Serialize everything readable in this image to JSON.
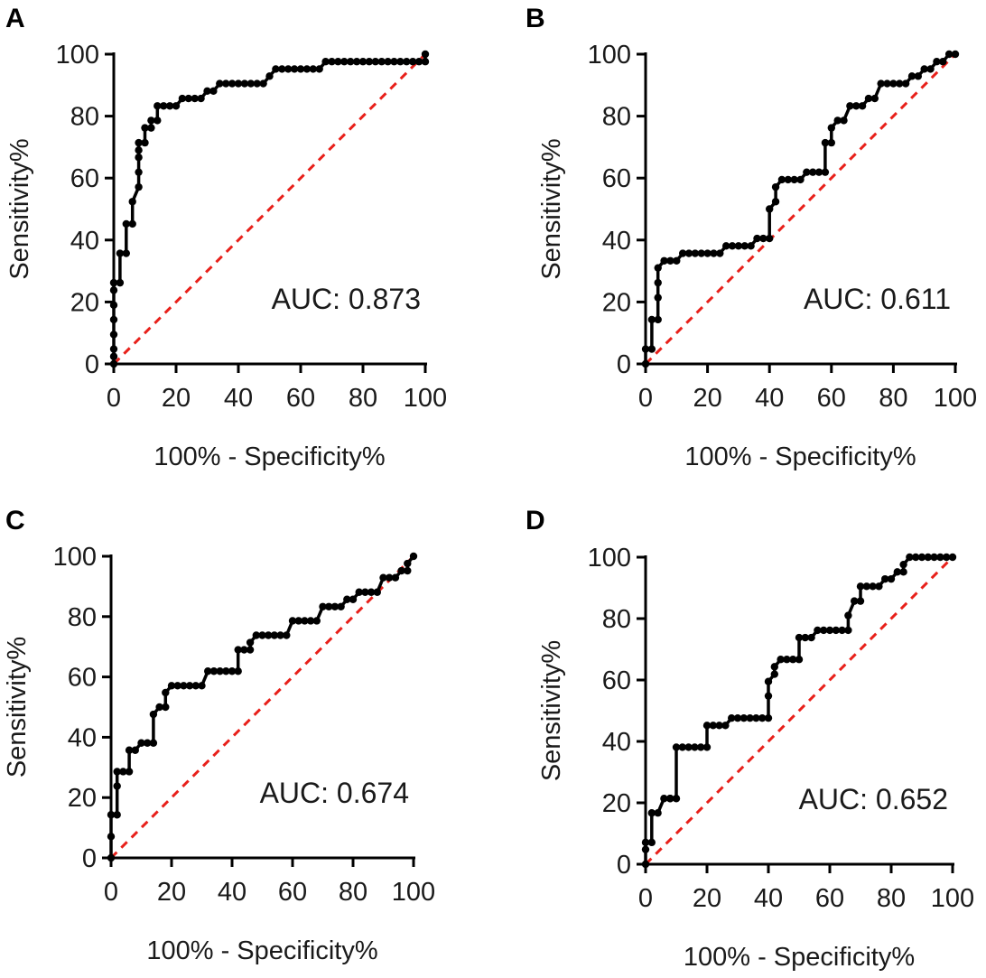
{
  "figure": {
    "title": "",
    "description": ""
  },
  "colors": {
    "axis": "#000000",
    "roc_line": "#000000",
    "reference_line": "#e8201a"
  },
  "chart_data": [
    {
      "panel": "A",
      "type": "line",
      "xlabel": "100% - Specificity%",
      "ylabel": "Sensitivity%",
      "xlim": [
        0,
        100
      ],
      "ylim": [
        0,
        100
      ],
      "xticks": [
        "0",
        "20",
        "40",
        "60",
        "80",
        "100"
      ],
      "yticks": [
        "0",
        "20",
        "40",
        "60",
        "80",
        "100"
      ],
      "annotation": "AUC: 0.873",
      "series": [
        {
          "name": "ROC curve",
          "x": [
            0,
            0,
            0,
            0,
            0,
            0,
            0,
            0,
            2,
            2,
            4,
            4,
            6,
            6,
            8,
            8,
            8,
            8,
            8,
            10,
            10,
            12,
            12,
            14,
            14,
            16,
            18,
            20,
            22,
            24,
            26,
            28,
            30,
            32,
            34,
            36,
            38,
            40,
            42,
            44,
            46,
            48,
            50,
            52,
            54,
            56,
            58,
            60,
            62,
            64,
            66,
            68,
            70,
            72,
            74,
            76,
            78,
            80,
            82,
            84,
            86,
            88,
            90,
            92,
            94,
            96,
            98,
            100,
            100
          ],
          "y": [
            0,
            2.4,
            4.8,
            9.5,
            14.3,
            19,
            23.8,
            26.2,
            26.2,
            35.7,
            35.7,
            45.2,
            45.2,
            52.4,
            57.1,
            61.9,
            66.7,
            69,
            71.4,
            71.4,
            76.2,
            76.2,
            78.6,
            78.6,
            83.3,
            83.3,
            83.3,
            83.3,
            85.7,
            85.7,
            85.7,
            85.7,
            88.1,
            88.1,
            90.5,
            90.5,
            90.5,
            90.5,
            90.5,
            90.5,
            90.5,
            90.5,
            92.9,
            95.2,
            95.2,
            95.2,
            95.2,
            95.2,
            95.2,
            95.2,
            95.2,
            97.6,
            97.6,
            97.6,
            97.6,
            97.6,
            97.6,
            97.6,
            97.6,
            97.6,
            97.6,
            97.6,
            97.6,
            97.6,
            97.6,
            97.6,
            97.6,
            97.6,
            100
          ]
        },
        {
          "name": "Reference line",
          "style": "dashed",
          "x": [
            0,
            100
          ],
          "y": [
            0,
            100
          ]
        }
      ]
    },
    {
      "panel": "B",
      "type": "line",
      "xlabel": "100% - Specificity%",
      "ylabel": "Sensitivity%",
      "xlim": [
        0,
        100
      ],
      "ylim": [
        0,
        100
      ],
      "xticks": [
        "0",
        "20",
        "40",
        "60",
        "80",
        "100"
      ],
      "yticks": [
        "0",
        "20",
        "40",
        "60",
        "80",
        "100"
      ],
      "annotation": "AUC: 0.611",
      "series": [
        {
          "name": "ROC curve",
          "x": [
            0,
            0,
            2,
            2,
            4,
            4,
            4,
            4,
            6,
            8,
            10,
            12,
            14,
            16,
            18,
            20,
            22,
            24,
            26,
            28,
            30,
            32,
            34,
            36,
            38,
            40,
            40,
            42,
            42,
            44,
            46,
            48,
            50,
            52,
            54,
            56,
            58,
            58,
            60,
            60,
            62,
            64,
            66,
            68,
            70,
            72,
            74,
            76,
            78,
            80,
            82,
            84,
            86,
            88,
            90,
            92,
            94,
            96,
            98,
            100
          ],
          "y": [
            0,
            4.8,
            4.8,
            14.3,
            14.3,
            21.4,
            26.2,
            31,
            33.3,
            33.3,
            33.3,
            35.7,
            35.7,
            35.7,
            35.7,
            35.7,
            35.7,
            35.7,
            38.1,
            38.1,
            38.1,
            38.1,
            38.1,
            40.5,
            40.5,
            40.5,
            50,
            52.4,
            57.1,
            59.5,
            59.5,
            59.5,
            59.5,
            61.9,
            61.9,
            61.9,
            61.9,
            71.4,
            71.4,
            76.2,
            78.6,
            78.6,
            83.3,
            83.3,
            83.3,
            85.7,
            85.7,
            90.5,
            90.5,
            90.5,
            90.5,
            90.5,
            92.9,
            92.9,
            95.2,
            95.2,
            97.6,
            97.6,
            100,
            100
          ]
        },
        {
          "name": "Reference line",
          "style": "dashed",
          "x": [
            0,
            100
          ],
          "y": [
            0,
            100
          ]
        }
      ]
    },
    {
      "panel": "C",
      "type": "line",
      "xlabel": "100% - Specificity%",
      "ylabel": "Sensitivity%",
      "xlim": [
        0,
        100
      ],
      "ylim": [
        0,
        100
      ],
      "xticks": [
        "0",
        "20",
        "40",
        "60",
        "80",
        "100"
      ],
      "yticks": [
        "0",
        "20",
        "40",
        "60",
        "80",
        "100"
      ],
      "annotation": "AUC: 0.674",
      "series": [
        {
          "name": "ROC curve",
          "x": [
            0,
            0,
            0,
            2,
            2,
            2,
            4,
            6,
            6,
            8,
            10,
            12,
            14,
            14,
            16,
            18,
            18,
            20,
            22,
            24,
            26,
            28,
            30,
            32,
            34,
            36,
            38,
            40,
            42,
            42,
            44,
            46,
            46,
            48,
            50,
            52,
            54,
            56,
            58,
            60,
            62,
            64,
            66,
            68,
            70,
            72,
            74,
            76,
            78,
            80,
            82,
            84,
            86,
            88,
            90,
            92,
            94,
            96,
            98,
            98,
            100
          ],
          "y": [
            0,
            7.1,
            14.3,
            14.3,
            23.8,
            28.6,
            28.6,
            28.6,
            35.7,
            35.7,
            38.1,
            38.1,
            38.1,
            47.6,
            50,
            50,
            54.8,
            57.1,
            57.1,
            57.1,
            57.1,
            57.1,
            57.1,
            61.9,
            61.9,
            61.9,
            61.9,
            61.9,
            61.9,
            69,
            69,
            69,
            71.4,
            73.8,
            73.8,
            73.8,
            73.8,
            73.8,
            73.8,
            78.6,
            78.6,
            78.6,
            78.6,
            78.6,
            83.3,
            83.3,
            83.3,
            83.3,
            85.7,
            85.7,
            88.1,
            88.1,
            88.1,
            88.1,
            92.9,
            92.9,
            92.9,
            95.2,
            95.2,
            97.6,
            100
          ]
        },
        {
          "name": "Reference line",
          "style": "dashed",
          "x": [
            0,
            100
          ],
          "y": [
            0,
            100
          ]
        }
      ]
    },
    {
      "panel": "D",
      "type": "line",
      "xlabel": "100% - Specificity%",
      "ylabel": "Sensitivity%",
      "xlim": [
        0,
        100
      ],
      "ylim": [
        0,
        100
      ],
      "xticks": [
        "0",
        "20",
        "40",
        "60",
        "80",
        "100"
      ],
      "yticks": [
        "0",
        "20",
        "40",
        "60",
        "80",
        "100"
      ],
      "annotation": "AUC: 0.652",
      "series": [
        {
          "name": "ROC curve",
          "x": [
            0,
            0,
            0,
            2,
            2,
            4,
            6,
            8,
            8,
            10,
            10,
            12,
            14,
            16,
            18,
            20,
            20,
            22,
            24,
            26,
            28,
            30,
            32,
            34,
            36,
            38,
            40,
            40,
            40,
            42,
            42,
            44,
            46,
            48,
            50,
            50,
            52,
            54,
            56,
            58,
            60,
            62,
            64,
            66,
            66,
            68,
            70,
            70,
            72,
            74,
            76,
            78,
            80,
            82,
            84,
            84,
            86,
            88,
            90,
            92,
            94,
            96,
            98,
            100
          ],
          "y": [
            0,
            4.8,
            7.1,
            7.1,
            16.7,
            16.7,
            21.4,
            21.4,
            21.4,
            21.4,
            38.1,
            38.1,
            38.1,
            38.1,
            38.1,
            38.1,
            45.2,
            45.2,
            45.2,
            45.2,
            47.6,
            47.6,
            47.6,
            47.6,
            47.6,
            47.6,
            47.6,
            54.8,
            59.5,
            61.9,
            64.3,
            66.7,
            66.7,
            66.7,
            66.7,
            73.8,
            73.8,
            73.8,
            76.2,
            76.2,
            76.2,
            76.2,
            76.2,
            76.2,
            81,
            85.7,
            85.7,
            90.5,
            90.5,
            90.5,
            90.5,
            92.9,
            92.9,
            95.2,
            95.2,
            97.6,
            100,
            100,
            100,
            100,
            100,
            100,
            100,
            100
          ]
        },
        {
          "name": "Reference line",
          "style": "dashed",
          "x": [
            0,
            100
          ],
          "y": [
            0,
            100
          ]
        }
      ]
    }
  ]
}
